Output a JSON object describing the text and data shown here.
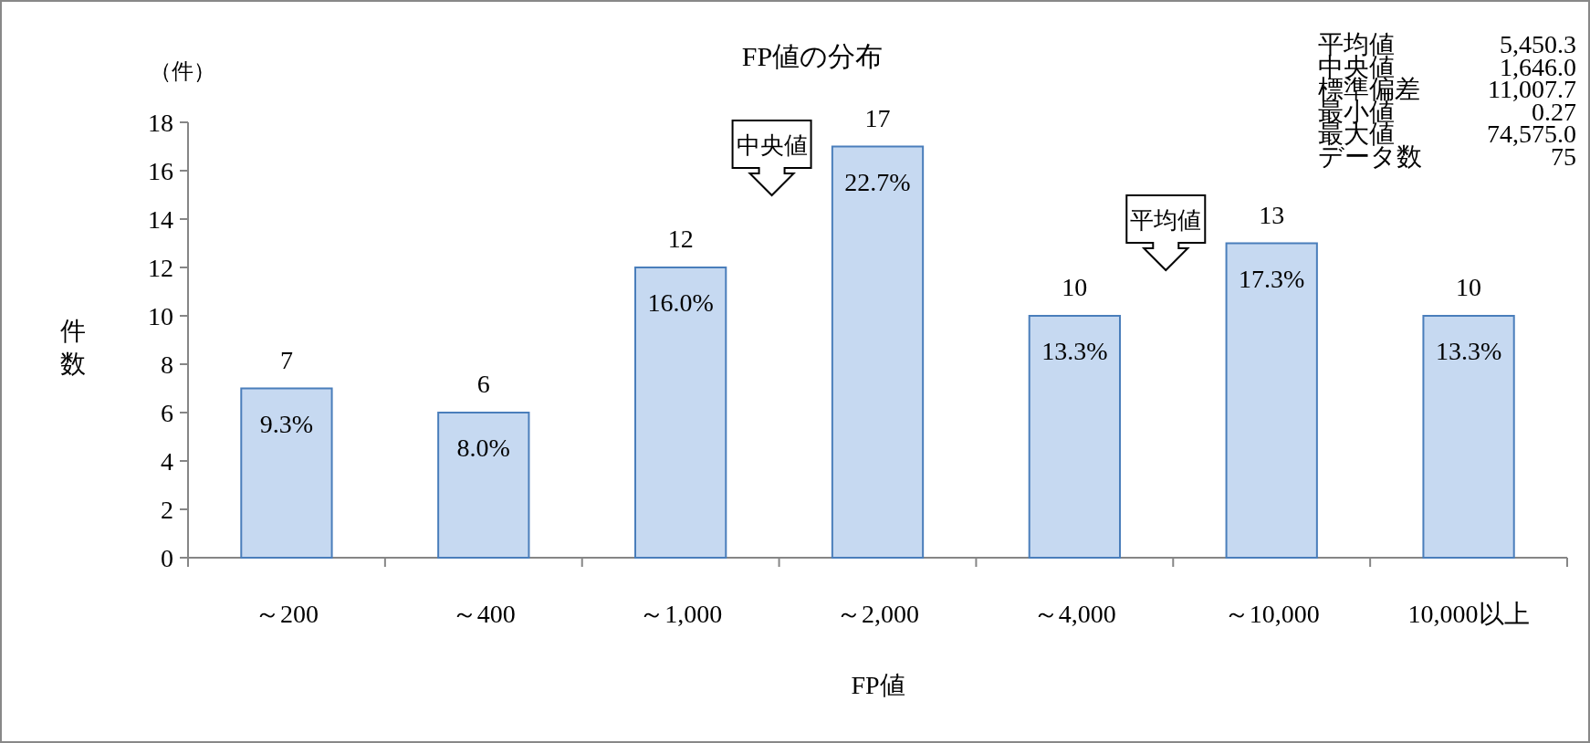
{
  "chart_data": {
    "type": "bar",
    "title": "FP値の分布",
    "xlabel": "FP値",
    "ylabel": "件数",
    "categories": [
      "～200",
      "～400",
      "～1,000",
      "～2,000",
      "～4,000",
      "～10,000",
      "10,000以上"
    ],
    "values": [
      7,
      6,
      12,
      17,
      10,
      13,
      10
    ],
    "data_labels": true,
    "color": "#c6d9f1",
    "ylim": [
      0,
      18
    ],
    "yticks": [
      0,
      2,
      4,
      6,
      8,
      10,
      12,
      14,
      16,
      18
    ],
    "grid": false,
    "annotations": [
      "（件）",
      "中央値",
      "平均値",
      {
        "text": "9.3%",
        "x": "～200",
        "y": 7
      },
      {
        "text": "8.0%",
        "x": "～400",
        "y": 6
      },
      {
        "text": "16.0%",
        "x": "～1,000",
        "y": 12
      },
      {
        "text": "22.7%",
        "x": "～2,000",
        "y": 17
      },
      {
        "text": "13.3%",
        "x": "～4,000",
        "y": 10
      },
      {
        "text": "17.3%",
        "x": "～10,000",
        "y": 13
      },
      {
        "text": "13.3%",
        "x": "10,000以上",
        "y": 10
      },
      "平均値 5,450.3",
      "中央値 1,646.0",
      "標準偏差 11,007.7",
      "最小値 0.27",
      "最大値 74,575.0",
      "データ数 75"
    ]
  }
}
